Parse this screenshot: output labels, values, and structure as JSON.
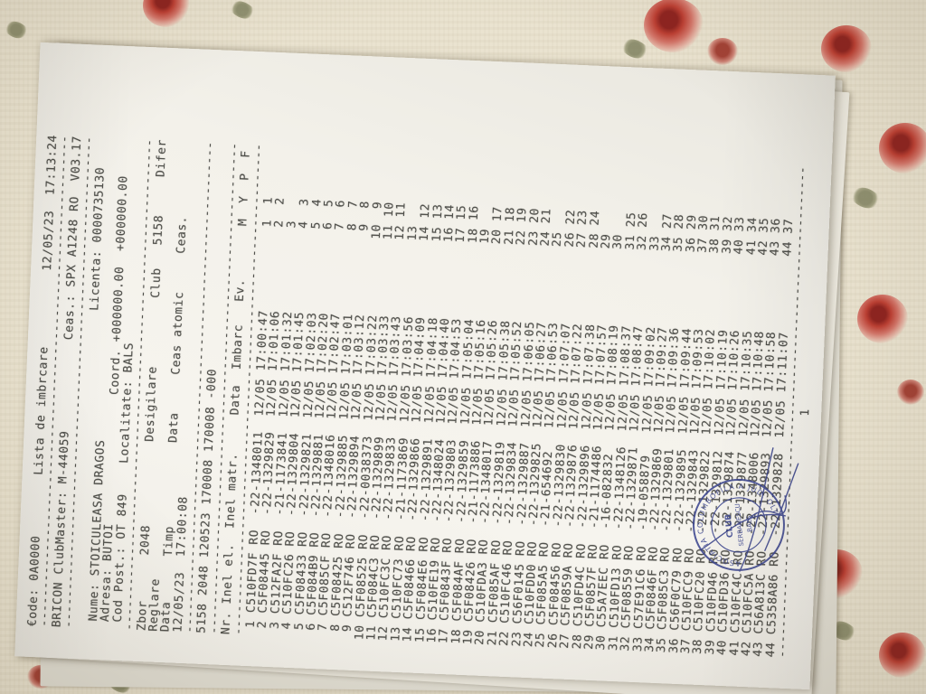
{
  "document": {
    "header": {
      "code": "€ode: 0A0000",
      "title": "Lista de imbrcare",
      "datetime": "12/05/23  17:13:24",
      "device": "BRICON ClubMaster: M-44059",
      "clock": "Ceas.: SPX A1248 RO  V03.17",
      "licenta": "Licenta: 0000735130",
      "nume": "Nume: STOICULEASA DRAGOS",
      "adresa": "Adresa: BUTOI",
      "coord": "Coord. +000000.00  +000000.00",
      "cod_post": "Cod Post.: OT 849",
      "localitate": "Localitate: BALS"
    },
    "race": {
      "zbor_label": "Zbor",
      "zbor": "2048",
      "desigilare_label": "Desigilare",
      "club_label": "Club",
      "club": "5158",
      "difer_label": "Difer",
      "reglare_label": "Reglare",
      "data_label": "Data",
      "timp_label": "Timp",
      "ceas_atomic_label": "Ceas atomic",
      "ceas_label": "Ceas.",
      "reglare_data": "12/05/23",
      "reglare_timp": "17:00:08",
      "control_line": "5158 2048 120523 170008 170008 -000"
    },
    "table": {
      "header": {
        "nr": "Nr. Inel el.",
        "inel_matr": "Inel matr.",
        "data_imbarc": "Data  Imbarc",
        "ev": "Ev.",
        "m": "M",
        "y": "Y",
        "p": "P",
        "f": "F"
      },
      "shared": {
        "country": "RO",
        "date": "12/05"
      },
      "rows": [
        [
          "C510FD7F",
          "-22-1348011",
          "17:00:47",
          1
        ],
        [
          "C5F08445",
          "-22-1329829",
          "17:01:06",
          2
        ],
        [
          "C512FA2F",
          "-21-1173841",
          "17:01:32",
          null
        ],
        [
          "C510FC26",
          "-22-1329804",
          "17:01:45",
          3
        ],
        [
          "C5F08433",
          "-22-1329821",
          "17:02:03",
          4
        ],
        [
          "C5F084B9",
          "-22-1329881",
          "17:02:20",
          5
        ],
        [
          "C5F085CF",
          "-22-1348016",
          "17:02:47",
          6
        ],
        [
          "C5F08425",
          "-22-1329885",
          "17:03:01",
          7
        ],
        [
          "C512F746",
          "-22-1329894",
          "17:03:12",
          8
        ],
        [
          "C5F08525",
          "-22-0038373",
          "17:03:22",
          9
        ],
        [
          "C5F084C3",
          "-22-1329899",
          "17:03:33",
          10
        ],
        [
          "C510FC3C",
          "-22-1329833",
          "17:03:43",
          11
        ],
        [
          "C510FC73",
          "-21-1173869",
          "17:03:56",
          null
        ],
        [
          "C5F08466",
          "-22-1329866",
          "17:04:09",
          12
        ],
        [
          "C5F084E6",
          "-22-1329891",
          "17:04:18",
          13
        ],
        [
          "C510FE19",
          "-22-1348024",
          "17:04:40",
          14
        ],
        [
          "C5F0843F",
          "-22-1329803",
          "17:04:53",
          15
        ],
        [
          "C5F084AF",
          "-22-1329859",
          "17:05:04",
          16
        ],
        [
          "C5F08426",
          "-21-1173886",
          "17:05:16",
          null
        ],
        [
          "C510FDA3",
          "-22-1348017",
          "17:05:26",
          17
        ],
        [
          "C5F085AF",
          "-22-1329819",
          "17:05:38",
          18
        ],
        [
          "C510FC46",
          "-22-1329834",
          "17:05:52",
          19
        ],
        [
          "C56F0145",
          "-22-1329887",
          "17:06:05",
          20
        ],
        [
          "C510FDD0",
          "-22-1329825",
          "17:06:27",
          21
        ],
        [
          "C5F085A5",
          "-21-654692",
          "17:06:53",
          null
        ],
        [
          "C5F08456",
          "-22-1329830",
          "17:07:07",
          22
        ],
        [
          "C5F0859A",
          "-22-1329876",
          "17:07:22",
          23
        ],
        [
          "C510FD4C",
          "-22-1329896",
          "17:07:38",
          24
        ],
        [
          "C5F0857F",
          "-21-1174486",
          "17:07:57",
          null
        ],
        [
          "C55A7EEC",
          "-16-082832",
          "17:08:19",
          null
        ],
        [
          "C510FD13",
          "-22-1348126",
          "17:08:37",
          25
        ],
        [
          "C5F08559",
          "-22-1329871",
          "17:08:47",
          26
        ],
        [
          "C57E91C6",
          "-19-058879",
          "17:09:02",
          null
        ],
        [
          "C5F0846F",
          "-22-1329869",
          "17:09:27",
          27
        ],
        [
          "C5F085C3",
          "-22-1329801",
          "17:09:36",
          28
        ],
        [
          "C56F0C79",
          "-22-1329895",
          "17:09:44",
          29
        ],
        [
          "C510FCC9",
          "-22-1329843",
          "17:09:53",
          30
        ],
        [
          "C510FC20",
          "-22-1329822",
          "17:10:02",
          31
        ],
        [
          "C510FD46",
          "-22-1329812",
          "17:10:19",
          32
        ],
        [
          "C510FD36",
          "-22-1329874",
          "17:10:26",
          33
        ],
        [
          "C510FC4C",
          "-22-1329877",
          "17:10:35",
          34
        ],
        [
          "C510FC5A",
          "-22-1348006",
          "17:10:48",
          35
        ],
        [
          "C56A813C",
          "-22-1329893",
          "17:10:58",
          36
        ],
        [
          "C5358A86",
          "-22-1329828",
          "17:11:07",
          37
        ]
      ]
    },
    "divider_char": "-",
    "divider_width": 65,
    "page_number": "1",
    "stamp": {
      "ink_color": "#3c4690",
      "arc_text": "ASOCIATIA COLUMBOFILA A JUD. OLT",
      "center_line1": "CLUB",
      "center_line2": "SERBANESCU",
      "center_line3": "BALS"
    }
  }
}
